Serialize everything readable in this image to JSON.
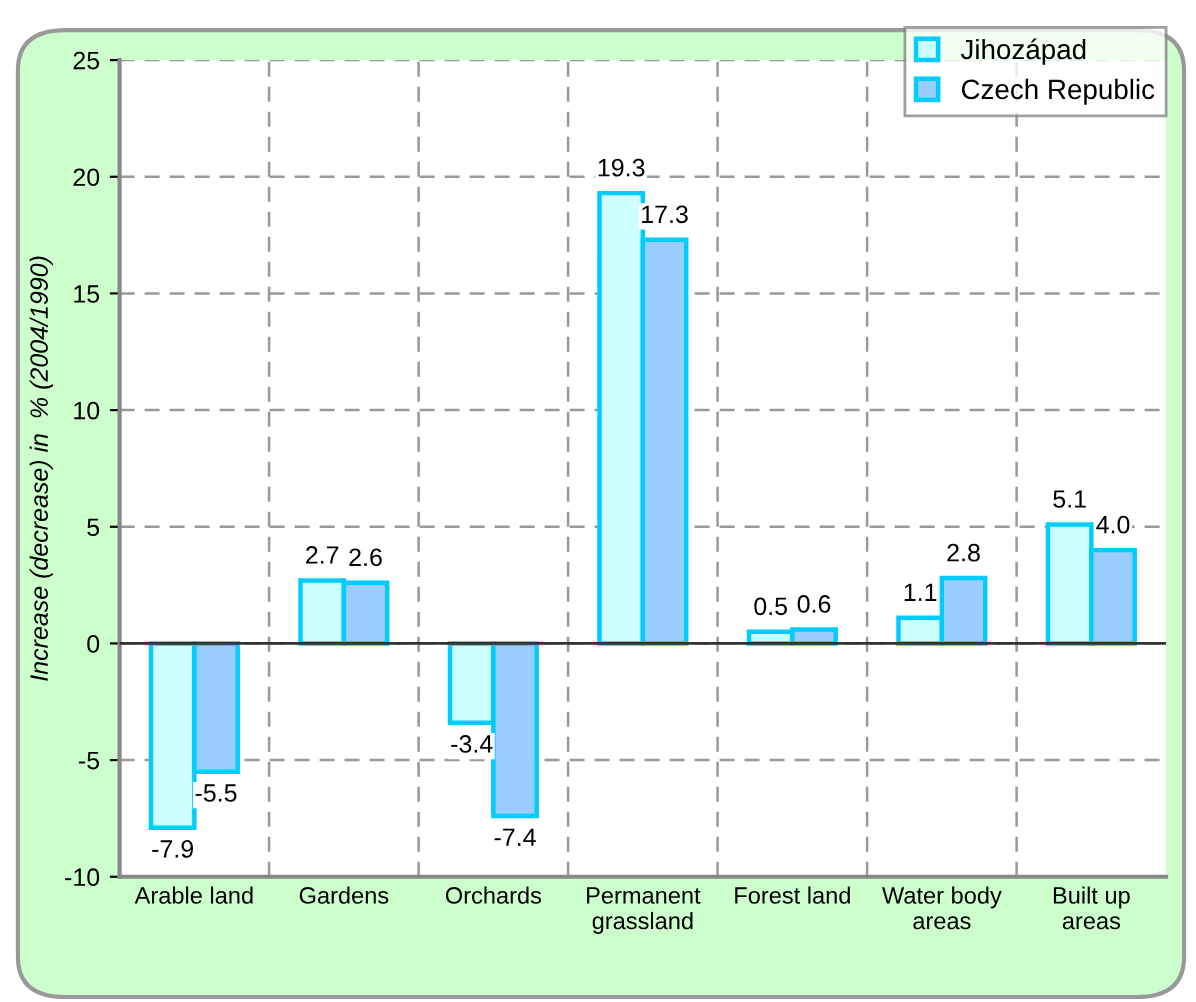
{
  "chart_data": {
    "type": "bar",
    "ylabel": "Increase (decrease) in  % (2004/1990)",
    "categories": [
      "Arable land",
      "Gardens",
      "Orchards",
      "Permanent\ngrassland",
      "Forest land",
      "Water body\nareas",
      "Built up\nareas"
    ],
    "series": [
      {
        "name": "Jihozápad",
        "color": "#ccffff",
        "values": [
          -7.9,
          2.7,
          -3.4,
          19.3,
          0.5,
          1.1,
          5.1
        ],
        "value_labels": [
          "-7.9",
          "2.7",
          "-3.4",
          "19.3",
          "0.5",
          "1.1",
          "5.1"
        ]
      },
      {
        "name": "Czech Republic",
        "color": "#99ccff",
        "values": [
          -5.5,
          2.6,
          -7.4,
          17.3,
          0.6,
          2.8,
          4.0
        ],
        "value_labels": [
          "-5.5",
          "2.6",
          "-7.4",
          "17.3",
          "0.6",
          "2.8",
          "4.0"
        ]
      }
    ],
    "ylim": [
      -10,
      25
    ],
    "yticks": [
      -10,
      -5,
      0,
      5,
      10,
      15,
      20,
      25
    ],
    "grid": true,
    "legend": "top right"
  }
}
